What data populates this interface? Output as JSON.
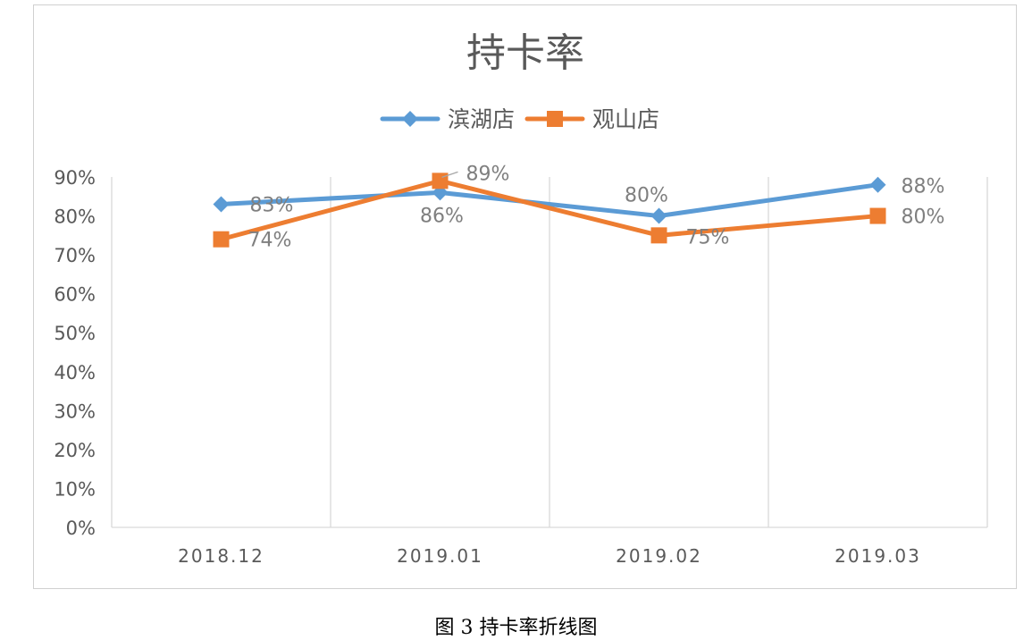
{
  "caption": "图 3  持卡率折线图",
  "colors": {
    "series_1": "#5b9bd5",
    "series_2": "#ed7d31",
    "grid": "#d9d9d9",
    "text": "#595959",
    "data_label": "#7f7f7f"
  },
  "chart_data": {
    "type": "line",
    "title": "持卡率",
    "categories": [
      "2018.12",
      "2019.01",
      "2019.02",
      "2019.03"
    ],
    "series": [
      {
        "name": "滨湖店",
        "values": [
          0.83,
          0.86,
          0.8,
          0.88
        ],
        "labels": [
          "83%",
          "86%",
          "80%",
          "88%"
        ],
        "marker": "diamond",
        "color": "#5b9bd5"
      },
      {
        "name": "观山店",
        "values": [
          0.74,
          0.89,
          0.75,
          0.8
        ],
        "labels": [
          "74%",
          "89%",
          "75%",
          "80%"
        ],
        "marker": "square",
        "color": "#ed7d31"
      }
    ],
    "y_ticks": [
      "0%",
      "10%",
      "20%",
      "30%",
      "40%",
      "50%",
      "60%",
      "70%",
      "80%",
      "90%"
    ],
    "ylim": [
      0,
      0.9
    ],
    "xlabel": "",
    "ylabel": "",
    "grid": "vertical",
    "legend": "top-center"
  }
}
